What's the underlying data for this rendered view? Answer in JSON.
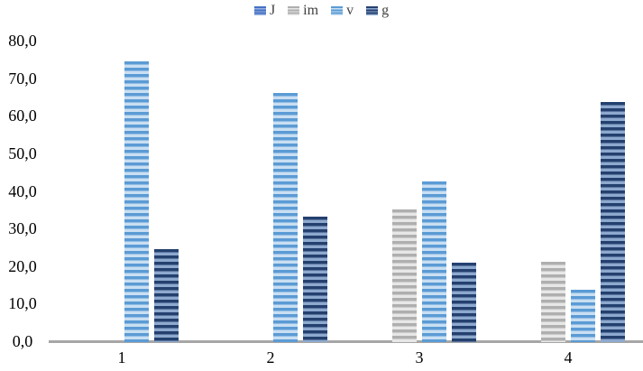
{
  "chart_data": {
    "type": "bar",
    "title": "",
    "xlabel": "",
    "ylabel": "",
    "categories": [
      "1",
      "2",
      "3",
      "4"
    ],
    "series": [
      {
        "name": "J",
        "values": [
          0,
          0,
          0,
          0
        ],
        "stripe_dark": "#4472C4",
        "stripe_light": "#9AB1E0"
      },
      {
        "name": "im",
        "values": [
          0,
          0,
          35.4,
          21.4
        ],
        "stripe_dark": "#AFAFAF",
        "stripe_light": "#E7E7E7"
      },
      {
        "name": "v",
        "values": [
          74.8,
          66.4,
          42.7,
          14.0
        ],
        "stripe_dark": "#5B9BD5",
        "stripe_light": "#C9DFF2"
      },
      {
        "name": "g",
        "values": [
          24.7,
          33.3,
          21.2,
          63.9
        ],
        "stripe_dark": "#24406E",
        "stripe_light": "#8EA9CE"
      }
    ],
    "ylim": [
      0,
      80
    ],
    "ytick_step": 10,
    "ytick_labels": [
      "0,0",
      "10,0",
      "20,0",
      "30,0",
      "40,0",
      "50,0",
      "60,0",
      "70,0",
      "80,0"
    ],
    "legend_position": "top",
    "grid": false,
    "bar_pattern": "horizontal-stripes",
    "axis_line_color": "#A6A6A6",
    "text_color": "#000000"
  }
}
